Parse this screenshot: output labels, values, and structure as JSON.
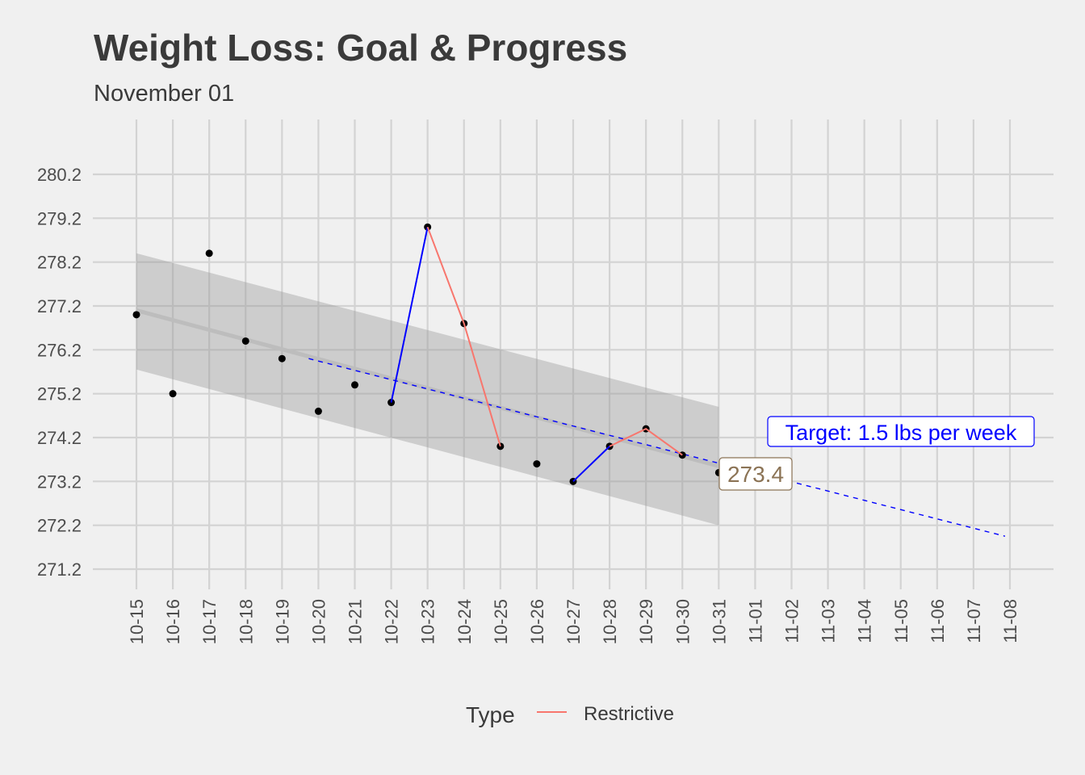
{
  "chart_data": {
    "type": "line",
    "title": "Weight Loss: Goal & Progress",
    "subtitle": "November 01",
    "xlabel": "",
    "ylabel": "",
    "x_ticks": [
      "10-15",
      "10-16",
      "10-17",
      "10-18",
      "10-19",
      "10-20",
      "10-21",
      "10-22",
      "10-23",
      "10-24",
      "10-25",
      "10-26",
      "10-27",
      "10-28",
      "10-29",
      "10-30",
      "10-31",
      "11-01",
      "11-02",
      "11-03",
      "11-04",
      "11-05",
      "11-06",
      "11-07",
      "11-08"
    ],
    "y_ticks": [
      280.2,
      279.2,
      278.2,
      277.2,
      276.2,
      275.2,
      274.2,
      273.2,
      272.2,
      271.2
    ],
    "ylim": [
      270.8,
      282.0
    ],
    "grid": true,
    "points": {
      "dates": [
        "10-15",
        "10-16",
        "10-17",
        "10-18",
        "10-19",
        "10-20",
        "10-21",
        "10-22",
        "10-23",
        "10-24",
        "10-25",
        "10-26",
        "10-27",
        "10-28",
        "10-29",
        "10-30",
        "10-31"
      ],
      "values": [
        277.0,
        275.2,
        278.4,
        276.4,
        276.0,
        274.8,
        275.4,
        275.0,
        279.0,
        276.8,
        274.0,
        273.6,
        273.2,
        274.0,
        274.4,
        273.8,
        273.4
      ]
    },
    "segments": [
      {
        "color": "#0000ff",
        "dates": [
          "10-22",
          "10-23"
        ]
      },
      {
        "color": "#f8766d",
        "dates": [
          "10-23",
          "10-24",
          "10-25"
        ]
      },
      {
        "color": "#0000ff",
        "dates": [
          "10-27",
          "10-28"
        ]
      },
      {
        "color": "#f8766d",
        "dates": [
          "10-28",
          "10-29",
          "10-30"
        ]
      }
    ],
    "trend": {
      "dates": [
        "10-15",
        "10-31"
      ],
      "values": [
        277.1,
        273.55
      ],
      "band_upper": [
        278.4,
        274.9
      ],
      "band_lower": [
        275.75,
        272.2
      ]
    },
    "target_line": {
      "dates": [
        "10-20",
        "11-08"
      ],
      "values": [
        276.0,
        271.95
      ],
      "color": "#0000ff"
    },
    "annotations": [
      {
        "text": "273.4",
        "date": "10-31",
        "value": 273.4,
        "color": "#8b7355"
      },
      {
        "text": "Target: 1.5 lbs per week",
        "color": "#0000ff"
      }
    ],
    "legend": {
      "title": "Type",
      "position": "bottom",
      "entries": [
        {
          "name": "Restrictive",
          "color": "#f8766d"
        }
      ]
    }
  }
}
